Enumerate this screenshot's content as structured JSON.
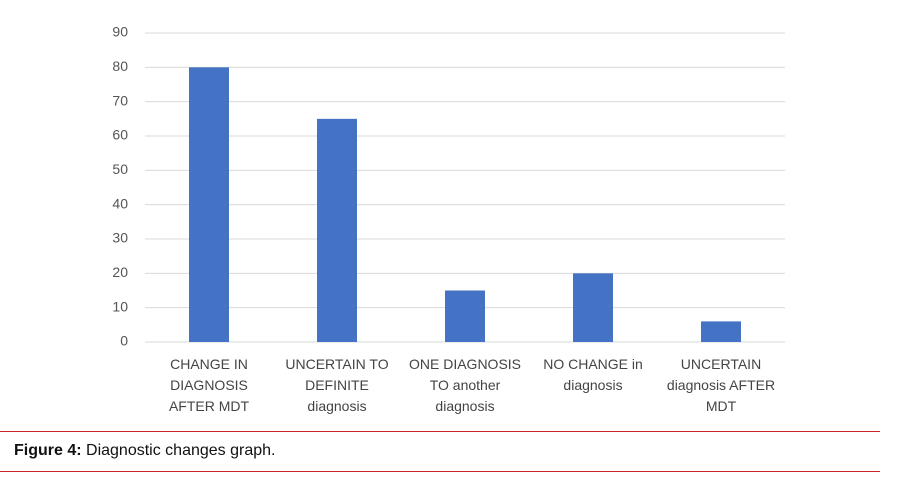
{
  "chart_data": {
    "type": "bar",
    "categories": [
      "CHANGE IN DIAGNOSIS AFTER MDT",
      "UNCERTAIN TO DEFINITE diagnosis",
      "ONE DIAGNOSIS TO another diagnosis",
      "NO CHANGE in diagnosis",
      "UNCERTAIN diagnosis AFTER MDT"
    ],
    "values": [
      80,
      65,
      15,
      20,
      6
    ],
    "color": "#4472c4",
    "ylim": [
      0,
      90
    ],
    "yticks": [
      0,
      10,
      20,
      30,
      40,
      50,
      60,
      70,
      80,
      90
    ],
    "grid": true
  },
  "caption": {
    "label": "Figure 4:",
    "text": "Diagnostic changes graph."
  }
}
